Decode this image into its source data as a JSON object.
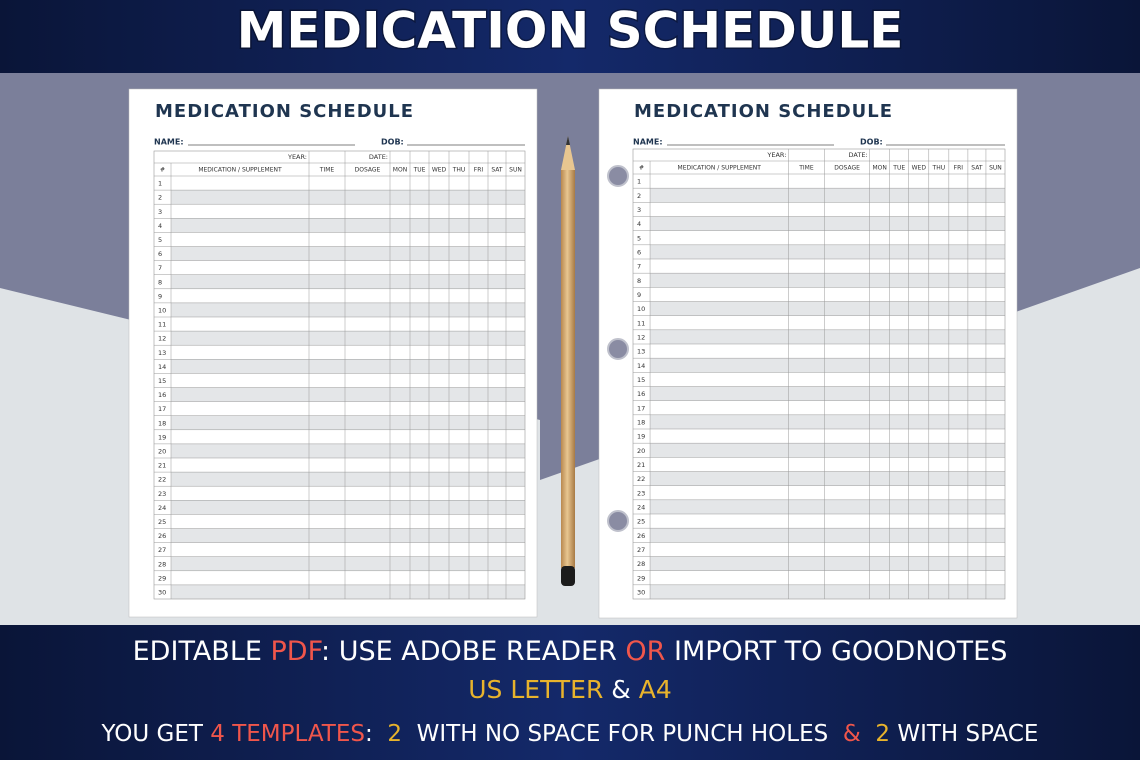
{
  "banner": {
    "title": "MEDICATION SCHEDULE"
  },
  "sheets": [
    {
      "title": "MEDICATION SCHEDULE",
      "name_label": "NAME:",
      "dob_label": "DOB:",
      "year_label": "YEAR:",
      "date_label": "DATE:",
      "columns": [
        "#",
        "MEDICATION / SUPPLEMENT",
        "TIME",
        "DOSAGE",
        "MON",
        "TUE",
        "WED",
        "THU",
        "FRI",
        "SAT",
        "SUN"
      ],
      "rows": [
        1,
        2,
        3,
        4,
        5,
        6,
        7,
        8,
        9,
        10,
        11,
        12,
        13,
        14,
        15,
        16,
        17,
        18,
        19,
        20,
        21,
        22,
        23,
        24,
        25,
        26,
        27,
        28,
        29,
        30
      ]
    },
    {
      "title": "MEDICATION SCHEDULE",
      "name_label": "NAME:",
      "dob_label": "DOB:",
      "year_label": "YEAR:",
      "date_label": "DATE:",
      "columns": [
        "#",
        "MEDICATION / SUPPLEMENT",
        "TIME",
        "DOSAGE",
        "MON",
        "TUE",
        "WED",
        "THU",
        "FRI",
        "SAT",
        "SUN"
      ],
      "rows": [
        1,
        2,
        3,
        4,
        5,
        6,
        7,
        8,
        9,
        10,
        11,
        12,
        13,
        14,
        15,
        16,
        17,
        18,
        19,
        20,
        21,
        22,
        23,
        24,
        25,
        26,
        27,
        28,
        29,
        30
      ]
    }
  ],
  "footer": [
    [
      {
        "text": "EDITABLE ",
        "color": "#ffffff"
      },
      {
        "text": "PDF",
        "color": "#f0564b"
      },
      {
        "text": ": USE ADOBE READER ",
        "color": "#ffffff"
      },
      {
        "text": "OR",
        "color": "#f0564b"
      },
      {
        "text": " IMPORT TO GOODNOTES",
        "color": "#ffffff"
      }
    ],
    [
      {
        "text": "US LETTER",
        "color": "#e8b32c"
      },
      {
        "text": " & ",
        "color": "#ffffff"
      },
      {
        "text": "A4",
        "color": "#e8b32c"
      }
    ],
    [
      {
        "text": "YOU GET ",
        "color": "#ffffff"
      },
      {
        "text": "4 TEMPLATES",
        "color": "#f0564b"
      },
      {
        "text": ":  ",
        "color": "#ffffff"
      },
      {
        "text": "2",
        "color": "#e8b32c"
      },
      {
        "text": "  WITH NO SPACE FOR PUNCH HOLES  ",
        "color": "#ffffff"
      },
      {
        "text": "&",
        "color": "#f0564b"
      },
      {
        "text": "  ",
        "color": "#ffffff"
      },
      {
        "text": "2",
        "color": "#e8b32c"
      },
      {
        "text": " WITH SPACE",
        "color": "#ffffff"
      }
    ]
  ]
}
